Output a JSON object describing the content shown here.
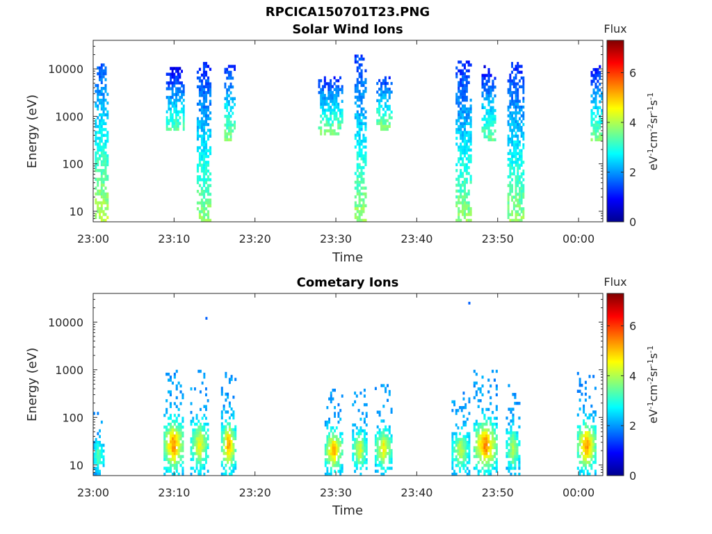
{
  "figure_title": "RPCICA150701T23.PNG",
  "colors": {
    "axis": "#262626",
    "colormap": [
      "#00008f",
      "#0000ff",
      "#0080ff",
      "#00ffff",
      "#80ff80",
      "#ffff00",
      "#ff8000",
      "#ff0000",
      "#800000"
    ]
  },
  "chart_data": [
    {
      "type": "heatmap",
      "title": "Solar Wind Ions",
      "xlabel": "Time",
      "ylabel": "Energy (eV)",
      "y_scale": "log",
      "xlim_minutes_after_2300": [
        0,
        63
      ],
      "ylim": [
        6,
        40000
      ],
      "x_ticks": [
        "23:00",
        "23:10",
        "23:20",
        "23:30",
        "23:40",
        "23:50",
        "00:00"
      ],
      "y_ticks": [
        "10",
        "100",
        "1000",
        "10000"
      ],
      "colorbar": {
        "title": "Flux",
        "label": "eV-1cm-2sr-1s-1",
        "label_parts": [
          "eV",
          "-1",
          "cm",
          "-2",
          "sr",
          "-1",
          "s",
          "-1"
        ],
        "range": [
          0,
          7.3
        ],
        "ticks": [
          "0",
          "2",
          "4",
          "6"
        ]
      },
      "bursts": [
        {
          "t_start": 0.2,
          "t_end": 1.9,
          "e_min": 6,
          "e_max": 15000,
          "flux": 2.4
        },
        {
          "t_start": 9.0,
          "t_end": 11.3,
          "e_min": 500,
          "e_max": 11000,
          "flux": 1.7
        },
        {
          "t_start": 12.8,
          "t_end": 14.6,
          "e_min": 6,
          "e_max": 14000,
          "flux": 2.1
        },
        {
          "t_start": 16.2,
          "t_end": 17.6,
          "e_min": 300,
          "e_max": 14000,
          "flux": 2.0
        },
        {
          "t_start": 27.8,
          "t_end": 30.9,
          "e_min": 400,
          "e_max": 7000,
          "flux": 2.0
        },
        {
          "t_start": 32.3,
          "t_end": 33.8,
          "e_min": 6,
          "e_max": 20000,
          "flux": 2.2
        },
        {
          "t_start": 35.0,
          "t_end": 37.0,
          "e_min": 500,
          "e_max": 7000,
          "flux": 2.1
        },
        {
          "t_start": 44.8,
          "t_end": 46.8,
          "e_min": 6,
          "e_max": 15000,
          "flux": 2.1
        },
        {
          "t_start": 48.0,
          "t_end": 49.8,
          "e_min": 300,
          "e_max": 12000,
          "flux": 1.8
        },
        {
          "t_start": 51.2,
          "t_end": 53.3,
          "e_min": 6,
          "e_max": 14000,
          "flux": 2.1
        },
        {
          "t_start": 61.5,
          "t_end": 63.0,
          "e_min": 300,
          "e_max": 12000,
          "flux": 1.9
        }
      ]
    },
    {
      "type": "heatmap",
      "title": "Cometary Ions",
      "xlabel": "Time",
      "ylabel": "Energy (eV)",
      "y_scale": "log",
      "xlim_minutes_after_2300": [
        0,
        63
      ],
      "ylim": [
        6,
        40000
      ],
      "x_ticks": [
        "23:00",
        "23:10",
        "23:20",
        "23:30",
        "23:40",
        "23:50",
        "00:00"
      ],
      "y_ticks": [
        "10",
        "100",
        "1000",
        "10000"
      ],
      "colorbar": {
        "title": "Flux",
        "label": "eV-1cm-2sr-1s-1",
        "label_parts": [
          "eV",
          "-1",
          "cm",
          "-2",
          "sr",
          "-1",
          "s",
          "-1"
        ],
        "range": [
          0,
          7.3
        ],
        "ticks": [
          "0",
          "2",
          "4",
          "6"
        ]
      },
      "bursts": [
        {
          "t_start": 0.0,
          "t_end": 1.4,
          "e_min": 6,
          "e_max": 150,
          "flux": 3.6
        },
        {
          "t_start": 8.7,
          "t_end": 11.2,
          "e_min": 6,
          "e_max": 1000,
          "flux": 5.6
        },
        {
          "t_start": 12.0,
          "t_end": 14.3,
          "e_min": 6,
          "e_max": 1000,
          "flux": 4.6
        },
        {
          "t_start": 15.8,
          "t_end": 17.7,
          "e_min": 6,
          "e_max": 900,
          "flux": 5.4
        },
        {
          "t_start": 28.6,
          "t_end": 30.9,
          "e_min": 6,
          "e_max": 400,
          "flux": 5.3
        },
        {
          "t_start": 32.0,
          "t_end": 33.9,
          "e_min": 6,
          "e_max": 400,
          "flux": 4.4
        },
        {
          "t_start": 34.8,
          "t_end": 37.0,
          "e_min": 6,
          "e_max": 500,
          "flux": 4.7
        },
        {
          "t_start": 44.3,
          "t_end": 46.6,
          "e_min": 6,
          "e_max": 400,
          "flux": 4.2
        },
        {
          "t_start": 47.0,
          "t_end": 50.0,
          "e_min": 6,
          "e_max": 1000,
          "flux": 5.6
        },
        {
          "t_start": 51.0,
          "t_end": 52.8,
          "e_min": 6,
          "e_max": 500,
          "flux": 4.1
        },
        {
          "t_start": 59.8,
          "t_end": 62.2,
          "e_min": 6,
          "e_max": 900,
          "flux": 5.5
        }
      ],
      "isolated_points": [
        {
          "t": 14.0,
          "e": 12000,
          "flux": 1.6
        },
        {
          "t": 46.5,
          "e": 25000,
          "flux": 1.6
        }
      ]
    }
  ]
}
